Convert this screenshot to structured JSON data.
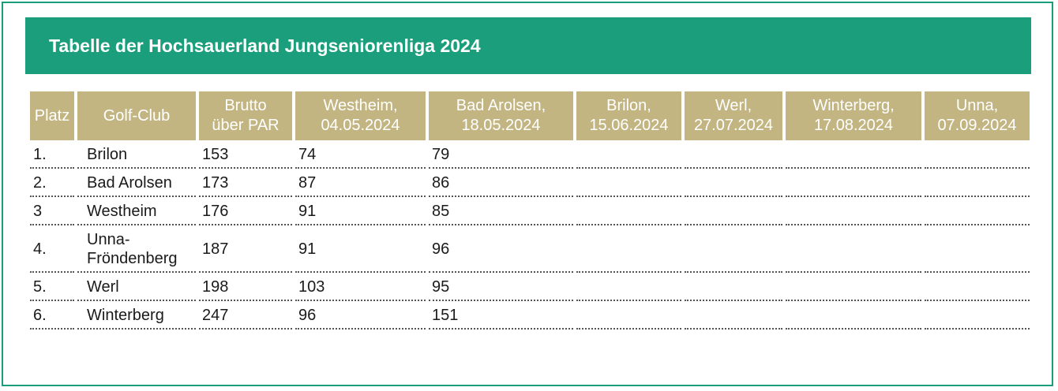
{
  "title": "Tabelle der Hochsauerland Jungseniorenliga 2024",
  "table": {
    "headers": [
      [
        "Platz"
      ],
      [
        "Golf-Club"
      ],
      [
        "Brutto",
        "über PAR"
      ],
      [
        "Westheim,",
        "04.05.2024"
      ],
      [
        "Bad Arolsen,",
        "18.05.2024"
      ],
      [
        "Brilon,",
        "15.06.2024"
      ],
      [
        "Werl,",
        "27.07.2024"
      ],
      [
        "Winterberg,",
        "17.08.2024"
      ],
      [
        "Unna,",
        "07.09.2024"
      ]
    ],
    "rows": [
      {
        "platz": "1.",
        "club": [
          "Brilon"
        ],
        "brutto": "153",
        "westheim": "74",
        "bad_arolsen": "79",
        "brilon": "",
        "werl": "",
        "winterberg": "",
        "unna": ""
      },
      {
        "platz": "2.",
        "club": [
          "Bad Arolsen"
        ],
        "brutto": "173",
        "westheim": "87",
        "bad_arolsen": "86",
        "brilon": "",
        "werl": "",
        "winterberg": "",
        "unna": ""
      },
      {
        "platz": "3",
        "club": [
          "Westheim"
        ],
        "brutto": "176",
        "westheim": "91",
        "bad_arolsen": "85",
        "brilon": "",
        "werl": "",
        "winterberg": "",
        "unna": ""
      },
      {
        "platz": "4.",
        "club": [
          "Unna-",
          "Fröndenberg"
        ],
        "brutto": "187",
        "westheim": "91",
        "bad_arolsen": "96",
        "brilon": "",
        "werl": "",
        "winterberg": "",
        "unna": ""
      },
      {
        "platz": "5.",
        "club": [
          "Werl"
        ],
        "brutto": "198",
        "westheim": "103",
        "bad_arolsen": "95",
        "brilon": "",
        "werl": "",
        "winterberg": "",
        "unna": ""
      },
      {
        "platz": "6.",
        "club": [
          "Winterberg"
        ],
        "brutto": "247",
        "westheim": "96",
        "bad_arolsen": "151",
        "brilon": "",
        "werl": "",
        "winterberg": "",
        "unna": ""
      }
    ]
  },
  "colors": {
    "accent": "#1a9e7c",
    "header_bg": "#c2b582",
    "header_text": "#ffffff"
  }
}
